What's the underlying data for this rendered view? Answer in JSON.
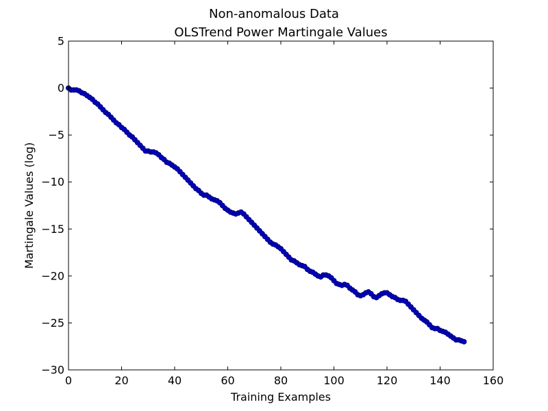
{
  "chart_data": {
    "type": "scatter",
    "title": "Non-anomalous Data",
    "subtitle": "OLSTrend Power Martingale Values",
    "xlabel": "Training Examples",
    "ylabel": "Martingale Values (log)",
    "xlim": [
      0,
      160
    ],
    "ylim": [
      -30,
      5
    ],
    "xticks": [
      "0",
      "20",
      "40",
      "60",
      "80",
      "100",
      "120",
      "140",
      "160"
    ],
    "yticks": [
      "5",
      "0",
      "−5",
      "−10",
      "−15",
      "−20",
      "−25",
      "−30"
    ],
    "grid": false,
    "colors": {
      "marker": "#0000bf",
      "edge": "#00006a"
    },
    "series": [
      {
        "x": [
          0,
          1,
          2,
          3,
          4,
          5,
          6,
          7,
          8,
          9,
          10,
          11,
          12,
          13,
          14,
          15,
          16,
          17,
          18,
          19,
          20,
          21,
          22,
          23,
          24,
          25,
          26,
          27,
          28,
          29,
          30,
          31,
          32,
          33,
          34,
          35,
          36,
          37,
          38,
          39,
          40,
          41,
          42,
          43,
          44,
          45,
          46,
          47,
          48,
          49,
          50,
          51,
          52,
          53,
          54,
          55,
          56,
          57,
          58,
          59,
          60,
          61,
          62,
          63,
          64,
          65,
          66,
          67,
          68,
          69,
          70,
          71,
          72,
          73,
          74,
          75,
          76,
          77,
          78,
          79,
          80,
          81,
          82,
          83,
          84,
          85,
          86,
          87,
          88,
          89,
          90,
          91,
          92,
          93,
          94,
          95,
          96,
          97,
          98,
          99,
          100,
          101,
          102,
          103,
          104,
          105,
          106,
          107,
          108,
          109,
          110,
          111,
          112,
          113,
          114,
          115,
          116,
          117,
          118,
          119,
          120,
          121,
          122,
          123,
          124,
          125,
          126,
          127,
          128,
          129,
          130,
          131,
          132,
          133,
          134,
          135,
          136,
          137,
          138,
          139,
          140,
          141,
          142,
          143,
          144,
          145,
          146,
          147,
          148,
          149
        ],
        "y": [
          0.0,
          -0.2,
          -0.2,
          -0.2,
          -0.3,
          -0.5,
          -0.6,
          -0.8,
          -1.0,
          -1.2,
          -1.5,
          -1.7,
          -2.0,
          -2.3,
          -2.6,
          -2.8,
          -3.1,
          -3.4,
          -3.7,
          -3.9,
          -4.2,
          -4.4,
          -4.7,
          -5.0,
          -5.2,
          -5.5,
          -5.8,
          -6.1,
          -6.4,
          -6.7,
          -6.7,
          -6.8,
          -6.8,
          -6.9,
          -7.1,
          -7.4,
          -7.6,
          -7.9,
          -8.0,
          -8.2,
          -8.4,
          -8.6,
          -8.9,
          -9.2,
          -9.5,
          -9.8,
          -10.1,
          -10.4,
          -10.7,
          -10.9,
          -11.2,
          -11.4,
          -11.4,
          -11.6,
          -11.8,
          -11.9,
          -12.0,
          -12.2,
          -12.5,
          -12.8,
          -13.0,
          -13.2,
          -13.3,
          -13.4,
          -13.3,
          -13.2,
          -13.4,
          -13.7,
          -14.0,
          -14.3,
          -14.6,
          -14.9,
          -15.2,
          -15.5,
          -15.8,
          -16.1,
          -16.4,
          -16.6,
          -16.7,
          -16.9,
          -17.1,
          -17.4,
          -17.7,
          -18.0,
          -18.3,
          -18.4,
          -18.6,
          -18.8,
          -18.9,
          -19.0,
          -19.3,
          -19.5,
          -19.6,
          -19.8,
          -20.0,
          -20.1,
          -19.9,
          -19.9,
          -20.0,
          -20.2,
          -20.5,
          -20.8,
          -20.9,
          -21.0,
          -20.9,
          -21.0,
          -21.3,
          -21.5,
          -21.7,
          -22.0,
          -22.1,
          -22.0,
          -21.8,
          -21.7,
          -21.9,
          -22.2,
          -22.3,
          -22.1,
          -21.9,
          -21.8,
          -21.8,
          -22.0,
          -22.2,
          -22.3,
          -22.5,
          -22.6,
          -22.6,
          -22.7,
          -23.0,
          -23.3,
          -23.6,
          -23.9,
          -24.2,
          -24.5,
          -24.7,
          -24.9,
          -25.2,
          -25.5,
          -25.6,
          -25.6,
          -25.8,
          -25.9,
          -26.0,
          -26.2,
          -26.4,
          -26.6,
          -26.8,
          -26.8,
          -26.9,
          -27.0
        ]
      }
    ]
  }
}
